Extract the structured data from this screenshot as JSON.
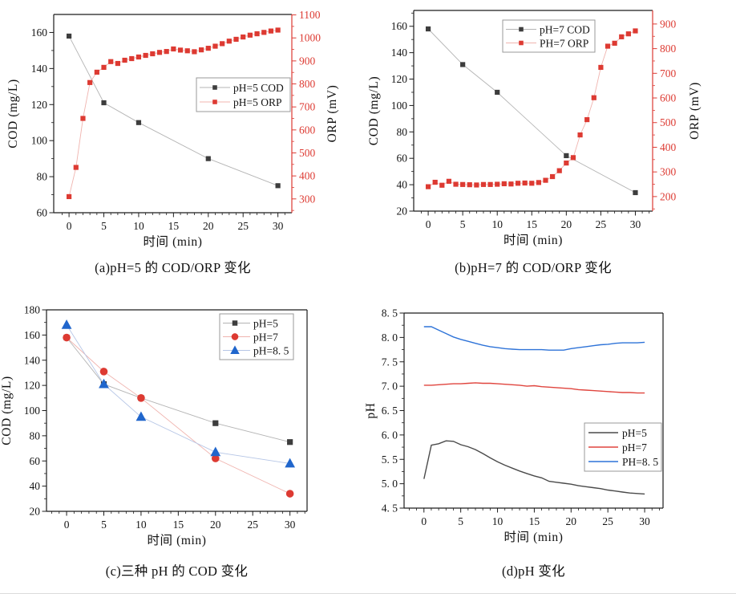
{
  "page": {
    "background": "#ffffff"
  },
  "colors": {
    "axis": "#1c1c1c",
    "red": "#dd3a32",
    "black_marker": "#3d3d3d",
    "gray_line": "#b4b4b4",
    "light_red_line": "#f0b4af",
    "blue": "#2066cc",
    "light_blue_line": "#b6c6e6",
    "dark_gray_line": "#4a4a4a",
    "red_line": "#e0453e",
    "blue_line": "#2e73d8"
  },
  "chart_data": [
    {
      "id": "a",
      "type": "line",
      "caption": "(a)pH=5 的 COD/ORP 变化",
      "xlabel": "时间 (min)",
      "ylabel": "COD (mg/L)",
      "y2label": "ORP (mV)",
      "x_axis": {
        "min": -2.2,
        "max": 32,
        "ticks": [
          0,
          5,
          10,
          15,
          20,
          25,
          30
        ],
        "minor_step": 1
      },
      "y_axis": {
        "min": 60,
        "max": 170,
        "ticks": [
          60,
          80,
          100,
          120,
          140,
          160
        ],
        "minor_step": 10
      },
      "y2_axis": {
        "min": 240,
        "max": 1102,
        "ticks": [
          300,
          400,
          500,
          600,
          700,
          800,
          900,
          1000,
          1100
        ],
        "minor_step": 50
      },
      "series": [
        {
          "name": "pH=5 COD",
          "axis": "y",
          "marker": "square",
          "marker_size": 6.2,
          "marker_color": "black_marker",
          "line_color": "gray_line",
          "x": [
            0,
            5,
            10,
            20,
            30
          ],
          "y": [
            158,
            121,
            110,
            90,
            75
          ]
        },
        {
          "name": "pH=5 ORP",
          "axis": "y2",
          "marker": "square",
          "marker_size": 6.2,
          "marker_color": "red",
          "line_color": "light_red_line",
          "x": [
            0,
            1,
            2,
            3,
            4,
            5,
            6,
            7,
            8,
            9,
            10,
            11,
            12,
            13,
            14,
            15,
            16,
            17,
            18,
            19,
            20,
            21,
            22,
            23,
            24,
            25,
            26,
            27,
            28,
            29,
            30
          ],
          "y": [
            310,
            437,
            650,
            806,
            851,
            872,
            897,
            889,
            903,
            910,
            917,
            924,
            931,
            937,
            941,
            952,
            947,
            944,
            940,
            948,
            955,
            964,
            975,
            986,
            994,
            1004,
            1012,
            1018,
            1024,
            1030,
            1034
          ]
        }
      ]
    },
    {
      "id": "b",
      "type": "line",
      "caption": "(b)pH=7 的 COD/ORP 变化",
      "xlabel": "时间 (min)",
      "ylabel": "COD (mg/L)",
      "y2label": "ORP (mV)",
      "x_axis": {
        "min": -2.1,
        "max": 32.5,
        "ticks": [
          0,
          5,
          10,
          15,
          20,
          25,
          30
        ],
        "minor_step": 1
      },
      "y_axis": {
        "min": 20,
        "max": 172,
        "ticks": [
          20,
          40,
          60,
          80,
          100,
          120,
          140,
          160
        ],
        "minor_step": 10
      },
      "y2_axis": {
        "min": 141,
        "max": 955,
        "ticks": [
          200,
          300,
          400,
          500,
          600,
          700,
          800,
          900
        ],
        "minor_step": 50
      },
      "series": [
        {
          "name": "pH=7 COD",
          "axis": "y",
          "marker": "square",
          "marker_size": 6.2,
          "marker_color": "black_marker",
          "line_color": "gray_line",
          "x": [
            0,
            5,
            10,
            20,
            30
          ],
          "y": [
            158,
            131,
            110,
            62,
            34
          ]
        },
        {
          "name": "PH=7 ORP",
          "axis": "y2",
          "marker": "square",
          "marker_size": 6.2,
          "marker_color": "red",
          "line_color": "light_red_line",
          "x": [
            0,
            1,
            2,
            3,
            4,
            5,
            6,
            7,
            8,
            9,
            10,
            11,
            12,
            13,
            14,
            15,
            16,
            17,
            18,
            19,
            20,
            21,
            22,
            23,
            24,
            25,
            26,
            27,
            28,
            29,
            30
          ],
          "y": [
            240,
            258,
            246,
            262,
            250,
            249,
            248,
            247,
            249,
            249,
            250,
            252,
            251,
            254,
            255,
            254,
            257,
            266,
            281,
            305,
            336,
            358,
            450,
            512,
            601,
            724,
            810,
            822,
            848,
            860,
            872
          ]
        }
      ]
    },
    {
      "id": "c",
      "type": "line",
      "caption": "(c)三种 pH 的 COD 变化",
      "xlabel": "时间 (min)",
      "ylabel": "COD (mg/L)",
      "x_axis": {
        "min": -2.7,
        "max": 32.3,
        "ticks": [
          0,
          5,
          10,
          15,
          20,
          25,
          30
        ],
        "minor_step": 1
      },
      "y_axis": {
        "min": 20,
        "max": 180,
        "ticks": [
          20,
          40,
          60,
          80,
          100,
          120,
          140,
          160,
          180
        ],
        "minor_step": 10
      },
      "series": [
        {
          "name": "pH=5",
          "axis": "y",
          "marker": "square",
          "marker_size": 7.2,
          "marker_color": "black_marker",
          "line_color": "gray_line",
          "x": [
            0,
            5,
            10,
            20,
            30
          ],
          "y": [
            158,
            121,
            110,
            90,
            75
          ]
        },
        {
          "name": "pH=7",
          "axis": "y",
          "marker": "circle",
          "marker_size": 9.6,
          "marker_color": "red",
          "line_color": "light_red_line",
          "x": [
            0,
            5,
            10,
            20,
            30
          ],
          "y": [
            158,
            131,
            110,
            62,
            34
          ]
        },
        {
          "name": "pH=8. 5",
          "axis": "y",
          "marker": "triangle",
          "marker_size": 11,
          "marker_color": "blue",
          "line_color": "light_blue_line",
          "x": [
            0,
            5,
            10,
            20,
            30
          ],
          "y": [
            168,
            121,
            95,
            67,
            58
          ]
        }
      ]
    },
    {
      "id": "d",
      "type": "line",
      "caption": "(d)pH 变化",
      "xlabel": "时间 (min)",
      "ylabel": "pH",
      "x_axis": {
        "min": -2.7,
        "max": 32.5,
        "ticks": [
          0,
          5,
          10,
          15,
          20,
          25,
          30
        ],
        "minor_step": 1
      },
      "y_axis": {
        "min": 4.5,
        "max": 8.5,
        "ticks": [
          4.5,
          5.0,
          5.5,
          6.0,
          6.5,
          7.0,
          7.5,
          8.0,
          8.5
        ],
        "tick_labels": [
          "4. 5",
          "5. 0",
          "5. 5",
          "6. 0",
          "6. 5",
          "7. 0",
          "7. 5",
          "8. 0",
          "8. 5"
        ],
        "minor_step": 0.25
      },
      "series": [
        {
          "name": "pH=5",
          "axis": "y",
          "marker": "none",
          "line_width": 1.4,
          "marker_color": "dark_gray_line",
          "line_color": "dark_gray_line",
          "x": [
            0,
            1,
            2,
            3,
            4,
            5,
            6,
            7,
            8,
            9,
            10,
            11,
            12,
            13,
            14,
            15,
            16,
            17,
            18,
            19,
            20,
            21,
            22,
            23,
            24,
            25,
            26,
            27,
            28,
            29,
            30
          ],
          "y": [
            5.1,
            5.79,
            5.82,
            5.88,
            5.87,
            5.8,
            5.76,
            5.7,
            5.62,
            5.53,
            5.45,
            5.38,
            5.32,
            5.26,
            5.21,
            5.16,
            5.12,
            5.05,
            5.03,
            5.01,
            4.99,
            4.96,
            4.94,
            4.92,
            4.9,
            4.87,
            4.85,
            4.83,
            4.81,
            4.8,
            4.79
          ]
        },
        {
          "name": "pH=7",
          "axis": "y",
          "marker": "none",
          "line_width": 1.4,
          "marker_color": "red_line",
          "line_color": "red_line",
          "x": [
            0,
            1,
            2,
            3,
            4,
            5,
            6,
            7,
            8,
            9,
            10,
            11,
            12,
            13,
            14,
            15,
            16,
            17,
            18,
            19,
            20,
            21,
            22,
            23,
            24,
            25,
            26,
            27,
            28,
            29,
            30
          ],
          "y": [
            7.02,
            7.02,
            7.03,
            7.04,
            7.05,
            7.05,
            7.06,
            7.07,
            7.06,
            7.06,
            7.05,
            7.04,
            7.03,
            7.02,
            7.0,
            7.01,
            6.99,
            6.98,
            6.97,
            6.96,
            6.95,
            6.93,
            6.92,
            6.91,
            6.9,
            6.89,
            6.88,
            6.87,
            6.87,
            6.86,
            6.86
          ]
        },
        {
          "name": "PH=8. 5",
          "axis": "y",
          "marker": "none",
          "line_width": 1.4,
          "marker_color": "blue_line",
          "line_color": "blue_line",
          "x": [
            0,
            1,
            2,
            3,
            4,
            5,
            6,
            7,
            8,
            9,
            10,
            11,
            12,
            13,
            14,
            15,
            16,
            17,
            18,
            19,
            20,
            21,
            22,
            23,
            24,
            25,
            26,
            27,
            28,
            29,
            30
          ],
          "y": [
            8.22,
            8.22,
            8.15,
            8.08,
            8.01,
            7.96,
            7.92,
            7.88,
            7.84,
            7.81,
            7.79,
            7.77,
            7.76,
            7.75,
            7.75,
            7.75,
            7.75,
            7.74,
            7.74,
            7.74,
            7.77,
            7.79,
            7.81,
            7.83,
            7.85,
            7.86,
            7.88,
            7.89,
            7.89,
            7.89,
            7.9
          ]
        }
      ]
    }
  ]
}
